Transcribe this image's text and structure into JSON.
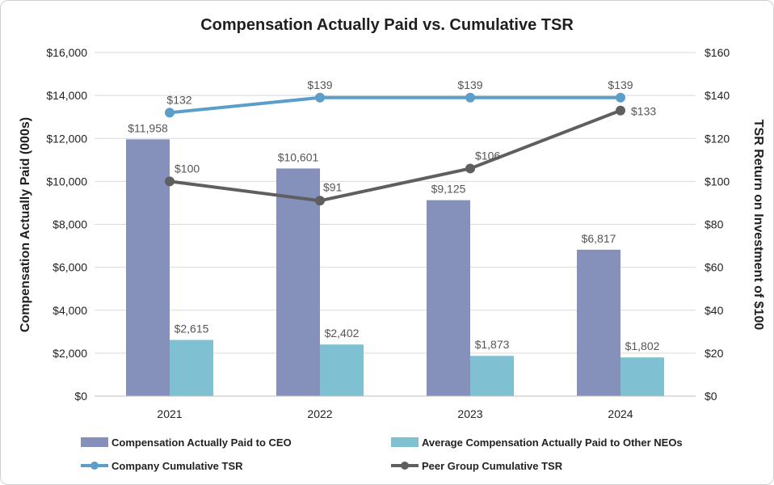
{
  "chart_data": {
    "type": "bar+line",
    "title": "Compensation Actually Paid vs. Cumulative TSR",
    "categories": [
      "2021",
      "2022",
      "2023",
      "2024"
    ],
    "y_left": {
      "label": "Compensation Actually Paid (000s)",
      "range": [
        0,
        16000
      ],
      "ticks": [
        "$0",
        "$2,000",
        "$4,000",
        "$6,000",
        "$8,000",
        "$10,000",
        "$12,000",
        "$14,000",
        "$16,000"
      ]
    },
    "y_right": {
      "label": "TSR Return on Investment of $100",
      "range": [
        0,
        160
      ],
      "ticks": [
        "$0",
        "$20",
        "$40",
        "$60",
        "$80",
        "$100",
        "$120",
        "$140",
        "$160"
      ]
    },
    "grid": true,
    "legend_position": "bottom",
    "bar_series": [
      {
        "name": "Compensation Actually Paid to CEO",
        "color": "#8691bb",
        "values": [
          11958,
          10601,
          9125,
          6817
        ],
        "labels": [
          "$11,958",
          "$10,601",
          "$9,125",
          "$6,817"
        ]
      },
      {
        "name": "Average Compensation Actually Paid to Other NEOs",
        "color": "#7fc1d3",
        "values": [
          2615,
          2402,
          1873,
          1802
        ],
        "labels": [
          "$2,615",
          "$2,402",
          "$1,873",
          "$1,802"
        ]
      }
    ],
    "line_series": [
      {
        "name": "Company Cumulative TSR",
        "color": "#5b9ec9",
        "values": [
          132,
          139,
          139,
          139
        ],
        "labels": [
          "$132",
          "$139",
          "$139",
          "$139"
        ]
      },
      {
        "name": "Peer Group Cumulative TSR",
        "color": "#5f5f62",
        "values": [
          100,
          91,
          106,
          133
        ],
        "labels": [
          "$100",
          "$91",
          "$106",
          "$133"
        ]
      }
    ]
  }
}
